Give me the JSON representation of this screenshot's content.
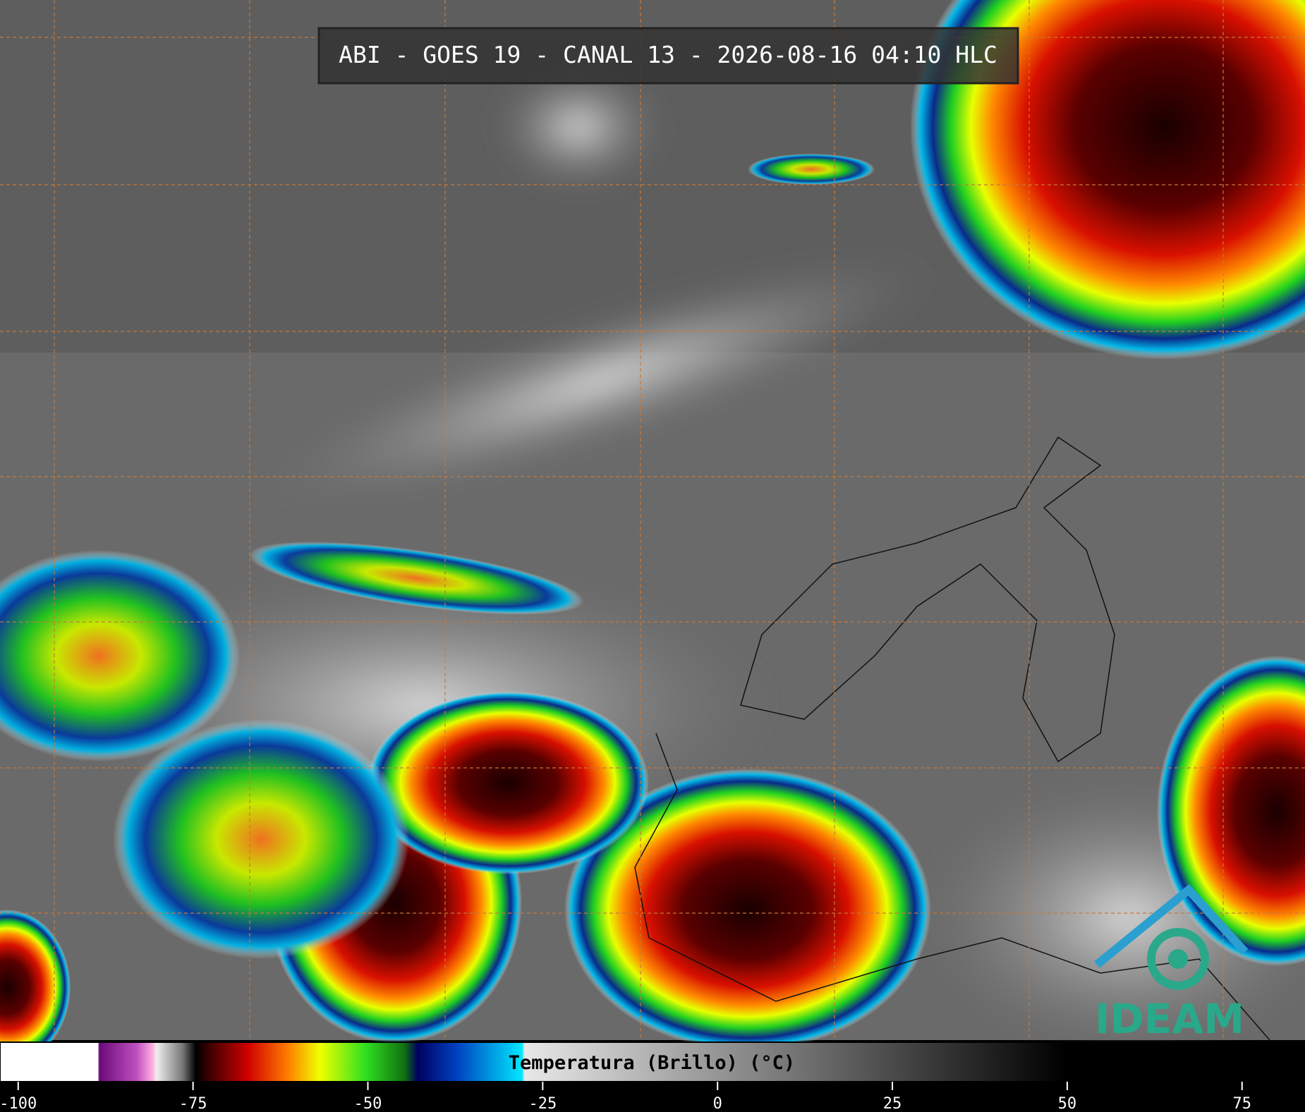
{
  "header": {
    "title": "ABI - GOES 19 - CANAL 13 - 2026-08-16 04:10 HLC"
  },
  "colorbar": {
    "label": "Temperatura (Brillo) (°C)",
    "lim": [
      -102.6,
      84
    ],
    "ticks": [
      -100,
      -75,
      -50,
      -25,
      0,
      25,
      50,
      75
    ]
  },
  "logo": {
    "text": "IDEAM"
  }
}
